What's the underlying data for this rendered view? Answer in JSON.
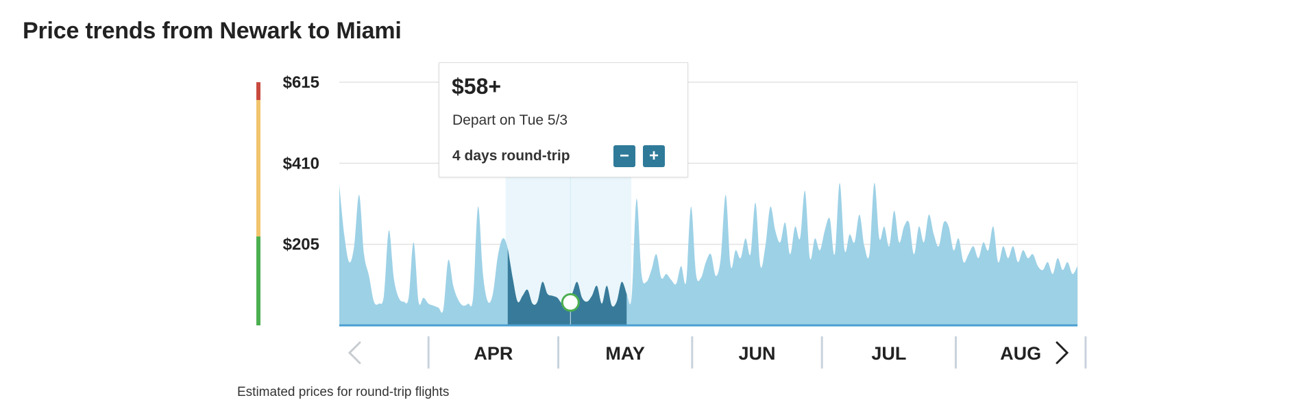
{
  "page": {
    "title": "Price trends from Newark to Miami"
  },
  "tooltip": {
    "price": "$58+",
    "depart": "Depart on Tue 5/3",
    "trip_length": "4 days round-trip",
    "decrease_label": "−",
    "increase_label": "+"
  },
  "footnote": "Estimated prices for round-trip flights",
  "colors": {
    "area": "#9dd1e6",
    "selected_area": "#387a99",
    "selection_band": "#eaf6fb",
    "baseline": "#4a9fd0",
    "scale_low": "#4caf50",
    "scale_mid": "#f2c46d",
    "scale_high": "#c94a3f"
  },
  "chart_data": {
    "type": "area",
    "title": "Price trends from Newark to Miami",
    "xlabel": "",
    "ylabel": "",
    "ylim": [
      0,
      615
    ],
    "y_ticks": [
      {
        "value": 615,
        "label": "$615"
      },
      {
        "value": 410,
        "label": "$410"
      },
      {
        "value": 205,
        "label": "$205"
      }
    ],
    "grid": true,
    "months": [
      "APR",
      "MAY",
      "JUN",
      "JUL",
      "AUG"
    ],
    "x_range_days": [
      0,
      182
    ],
    "month_divider_days": [
      22,
      54,
      87,
      119,
      152,
      184
    ],
    "selected_range_days": [
      41,
      72
    ],
    "selected_day": 57,
    "selected_price": 58,
    "color_scale_bands": [
      {
        "from": 0,
        "to": 225,
        "color": "#4caf50"
      },
      {
        "from": 225,
        "to": 570,
        "color": "#f2c46d"
      },
      {
        "from": 570,
        "to": 615,
        "color": "#c94a3f"
      }
    ],
    "series": [
      {
        "values": [
          355,
          230,
          160,
          200,
          330,
          180,
          125,
          60,
          55,
          75,
          240,
          120,
          70,
          60,
          70,
          210,
          60,
          70,
          55,
          50,
          45,
          40,
          165,
          100,
          65,
          50,
          55,
          70,
          300,
          130,
          60,
          80,
          175,
          220,
          195,
          120,
          60,
          75,
          90,
          55,
          60,
          110,
          80,
          75,
          70,
          55,
          60,
          80,
          110,
          70,
          60,
          75,
          100,
          55,
          100,
          50,
          60,
          110,
          80,
          70,
          320,
          130,
          110,
          140,
          180,
          120,
          130,
          115,
          105,
          150,
          110,
          300,
          130,
          120,
          160,
          180,
          125,
          170,
          330,
          150,
          190,
          170,
          220,
          180,
          310,
          150,
          200,
          300,
          240,
          210,
          260,
          180,
          250,
          220,
          340,
          170,
          220,
          190,
          240,
          270,
          180,
          360,
          190,
          230,
          210,
          280,
          200,
          180,
          360,
          220,
          250,
          200,
          290,
          210,
          250,
          260,
          180,
          250,
          210,
          280,
          230,
          200,
          260,
          250,
          190,
          220,
          160,
          180,
          200,
          170,
          210,
          190,
          250,
          160,
          200,
          170,
          200,
          160,
          190,
          170,
          180,
          150,
          140,
          160,
          130,
          170,
          140,
          160,
          130,
          150
        ]
      }
    ]
  }
}
